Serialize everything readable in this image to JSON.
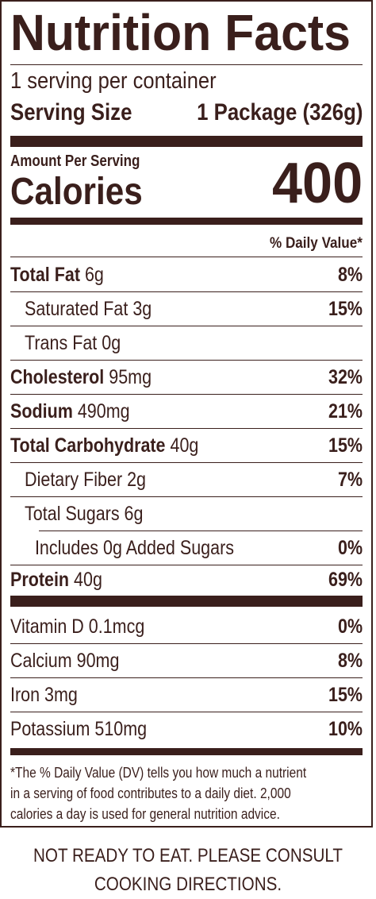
{
  "label": {
    "title": "Nutrition Facts",
    "servings_per_container": "1 serving per container",
    "serving_size_label": "Serving Size",
    "serving_size_value": "1 Package (326g)",
    "amount_per_serving": "Amount Per Serving",
    "calories_label": "Calories",
    "calories_value": "400",
    "daily_value_header": "% Daily Value*",
    "nutrients": [
      {
        "name": "Total Fat",
        "amount": "6g",
        "dv": "8%"
      },
      {
        "name": "Saturated Fat",
        "amount": "3g",
        "dv": "15%"
      },
      {
        "name": "Trans Fat",
        "amount": "0g",
        "dv": ""
      },
      {
        "name": "Cholesterol",
        "amount": "95mg",
        "dv": "32%"
      },
      {
        "name": "Sodium",
        "amount": "490mg",
        "dv": "21%"
      },
      {
        "name": "Total Carbohydrate",
        "amount": "40g",
        "dv": "15%"
      },
      {
        "name": "Dietary Fiber",
        "amount": "2g",
        "dv": "7%"
      },
      {
        "name": "Total Sugars",
        "amount": "6g",
        "dv": ""
      },
      {
        "name": "Includes 0g Added Sugars",
        "amount": "",
        "dv": "0%"
      },
      {
        "name": "Protein",
        "amount": "40g",
        "dv": "69%"
      }
    ],
    "vitamins": [
      {
        "name": "Vitamin D",
        "amount": "0.1mcg",
        "dv": "0%"
      },
      {
        "name": "Calcium",
        "amount": "90mg",
        "dv": "8%"
      },
      {
        "name": "Iron",
        "amount": "3mg",
        "dv": "15%"
      },
      {
        "name": "Potassium",
        "amount": "510mg",
        "dv": "10%"
      }
    ],
    "footnote_lines": [
      "*The % Daily Value (DV) tells you how much a nutrient",
      "in a serving of food contributes to a daily diet. 2,000",
      "calories a day is used for general nutrition advice."
    ]
  },
  "warning_lines": [
    "NOT READY TO EAT. PLEASE CONSULT",
    "COOKING DIRECTIONS."
  ],
  "colors": {
    "ink": "#3a1f1c",
    "background": "#ffffff"
  }
}
